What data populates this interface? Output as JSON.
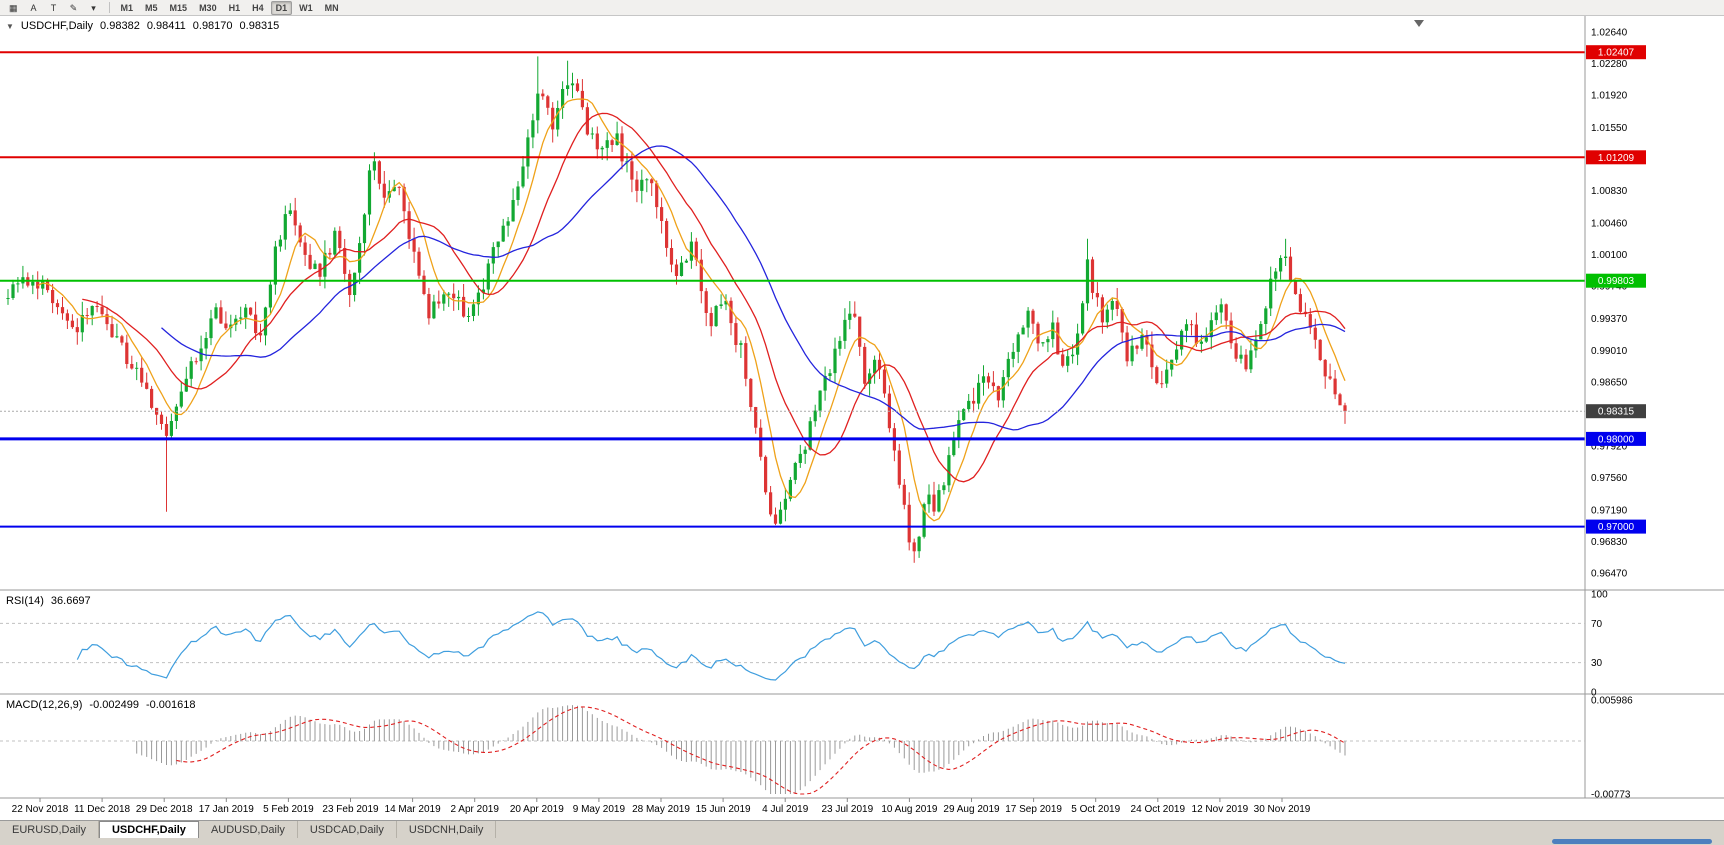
{
  "toolbar": {
    "tool_buttons": [
      {
        "name": "chart-type-icon",
        "glyph": "▦"
      },
      {
        "name": "text-tool-a",
        "glyph": "A"
      },
      {
        "name": "text-label-tool-t",
        "glyph": "T"
      },
      {
        "name": "draw-tool-icon",
        "glyph": "✎"
      },
      {
        "name": "tools-dropdown-icon",
        "glyph": "▾"
      }
    ],
    "timeframes": [
      {
        "label": "M1"
      },
      {
        "label": "M5"
      },
      {
        "label": "M15"
      },
      {
        "label": "M30"
      },
      {
        "label": "H1"
      },
      {
        "label": "H4"
      },
      {
        "label": "D1"
      },
      {
        "label": "W1"
      },
      {
        "label": "MN"
      }
    ],
    "active_timeframe": "D1"
  },
  "header": {
    "collapse_icon": "▼",
    "symbol_title": "USDCHF,Daily",
    "open": "0.98382",
    "high": "0.98411",
    "low": "0.98170",
    "close": "0.98315"
  },
  "price_axis": {
    "labels": [
      "1.02640",
      "1.02280",
      "1.01920",
      "1.01550",
      "1.01190",
      "1.00830",
      "1.00460",
      "1.00100",
      "0.99740",
      "0.99370",
      "0.99010",
      "0.98650",
      "0.97920",
      "0.97560",
      "0.97190",
      "0.96830",
      "0.96470"
    ]
  },
  "hlines": [
    {
      "price": 1.02407,
      "label": "1.02407",
      "color": "#e00000",
      "width": 2
    },
    {
      "price": 1.01209,
      "label": "1.01209",
      "color": "#e00000",
      "width": 2
    },
    {
      "price": 0.99803,
      "label": "0.99803",
      "color": "#00c000",
      "width": 2
    },
    {
      "price": 0.98,
      "label": "0.98000",
      "color": "#0000ee",
      "width": 3
    },
    {
      "price": 0.97,
      "label": "0.97000",
      "color": "#0000ee",
      "width": 2
    }
  ],
  "current_price": {
    "value": 0.98315,
    "label": "0.98315",
    "line_color": "#aaaaaa",
    "tag_bg": "#404040"
  },
  "rsi": {
    "label": "RSI(14)",
    "value_text": "36.6697",
    "period": 14,
    "levels": [
      70,
      30
    ],
    "axis_labels": [
      {
        "text": "100",
        "value": 100
      },
      {
        "text": "70",
        "value": 70
      },
      {
        "text": "30",
        "value": 30
      },
      {
        "text": "0",
        "value": 0
      }
    ],
    "color": "#3f9ede"
  },
  "macd": {
    "label": "MACD(12,26,9)",
    "macd_text": "-0.002499",
    "signal_text": "-0.001618",
    "axis_max": 0.005986,
    "axis_min": -0.00773,
    "axis_labels": [
      {
        "text": "0.005986",
        "value": 0.005986
      },
      {
        "text": "-0.00773",
        "value": -0.00773
      }
    ],
    "histogram_color": "#9a9a9a",
    "signal_color": "#e02020"
  },
  "x_axis": {
    "labels": [
      "22 Nov 2018",
      "11 Dec 2018",
      "29 Dec 2018",
      "17 Jan 2019",
      "5 Feb 2019",
      "23 Feb 2019",
      "14 Mar 2019",
      "2 Apr 2019",
      "20 Apr 2019",
      "9 May 2019",
      "28 May 2019",
      "15 Jun 2019",
      "4 Jul 2019",
      "23 Jul 2019",
      "10 Aug 2019",
      "29 Aug 2019",
      "17 Sep 2019",
      "5 Oct 2019",
      "24 Oct 2019",
      "12 Nov 2019",
      "30 Nov 2019"
    ]
  },
  "tabs": {
    "items": [
      {
        "label": "EURUSD,Daily",
        "active": false
      },
      {
        "label": "USDCHF,Daily",
        "active": true
      },
      {
        "label": "AUDUSD,Daily",
        "active": false
      },
      {
        "label": "USDCAD,Daily",
        "active": false
      },
      {
        "label": "USDCNH,Daily",
        "active": false
      }
    ]
  },
  "chart_data": {
    "type": "candlestick",
    "symbol": "USDCHF",
    "timeframe": "Daily",
    "title": "USDCHF,Daily",
    "candle_count": 271,
    "up_color": "#12a832",
    "down_color": "#dd3434",
    "price_range_visible": [
      0.963,
      1.0282
    ],
    "last_candle": {
      "open": 0.98382,
      "high": 0.98411,
      "low": 0.9817,
      "close": 0.98315
    },
    "price_path": [
      [
        0.0,
        0.996
      ],
      [
        0.018,
        0.999
      ],
      [
        0.035,
        0.9955
      ],
      [
        0.05,
        0.993
      ],
      [
        0.065,
        0.995
      ],
      [
        0.085,
        0.9905
      ],
      [
        0.105,
        0.9855
      ],
      [
        0.118,
        0.98
      ],
      [
        0.126,
        0.9845
      ],
      [
        0.14,
        0.9895
      ],
      [
        0.155,
        0.9945
      ],
      [
        0.165,
        0.9925
      ],
      [
        0.178,
        0.9945
      ],
      [
        0.188,
        0.9915
      ],
      [
        0.2,
        1.001
      ],
      [
        0.21,
        1.0075
      ],
      [
        0.22,
        1.0005
      ],
      [
        0.233,
        0.9985
      ],
      [
        0.244,
        1.0035
      ],
      [
        0.256,
        0.9955
      ],
      [
        0.265,
        1.004
      ],
      [
        0.272,
        1.0125
      ],
      [
        0.281,
        1.007
      ],
      [
        0.29,
        1.01
      ],
      [
        0.303,
        1.001
      ],
      [
        0.315,
        0.994
      ],
      [
        0.33,
        0.9965
      ],
      [
        0.345,
        0.9935
      ],
      [
        0.36,
        1.0
      ],
      [
        0.374,
        1.0045
      ],
      [
        0.386,
        1.012
      ],
      [
        0.397,
        1.021
      ],
      [
        0.408,
        1.016
      ],
      [
        0.42,
        1.0215
      ],
      [
        0.433,
        1.0155
      ],
      [
        0.444,
        1.012
      ],
      [
        0.455,
        1.015
      ],
      [
        0.468,
        1.008
      ],
      [
        0.479,
        1.0105
      ],
      [
        0.49,
        1.004
      ],
      [
        0.5,
        0.999
      ],
      [
        0.511,
        1.002
      ],
      [
        0.524,
        0.993
      ],
      [
        0.535,
        0.9955
      ],
      [
        0.548,
        0.99
      ],
      [
        0.558,
        0.982
      ],
      [
        0.568,
        0.972
      ],
      [
        0.576,
        0.97
      ],
      [
        0.586,
        0.9755
      ],
      [
        0.596,
        0.979
      ],
      [
        0.606,
        0.9845
      ],
      [
        0.616,
        0.9885
      ],
      [
        0.626,
        0.993
      ],
      [
        0.633,
        0.9945
      ],
      [
        0.641,
        0.987
      ],
      [
        0.649,
        0.99
      ],
      [
        0.658,
        0.982
      ],
      [
        0.666,
        0.9765
      ],
      [
        0.672,
        0.9695
      ],
      [
        0.678,
        0.9668
      ],
      [
        0.686,
        0.974
      ],
      [
        0.693,
        0.971
      ],
      [
        0.701,
        0.9762
      ],
      [
        0.711,
        0.9812
      ],
      [
        0.721,
        0.9845
      ],
      [
        0.731,
        0.988
      ],
      [
        0.741,
        0.9852
      ],
      [
        0.751,
        0.9906
      ],
      [
        0.762,
        0.9948
      ],
      [
        0.772,
        0.9906
      ],
      [
        0.781,
        0.993
      ],
      [
        0.79,
        0.9872
      ],
      [
        0.8,
        0.992
      ],
      [
        0.807,
        1.0005
      ],
      [
        0.818,
        0.993
      ],
      [
        0.828,
        0.9962
      ],
      [
        0.838,
        0.989
      ],
      [
        0.848,
        0.9922
      ],
      [
        0.86,
        0.9862
      ],
      [
        0.872,
        0.9906
      ],
      [
        0.882,
        0.9936
      ],
      [
        0.893,
        0.99
      ],
      [
        0.907,
        0.995
      ],
      [
        0.917,
        0.9906
      ],
      [
        0.927,
        0.988
      ],
      [
        0.937,
        0.9936
      ],
      [
        0.947,
        0.9985
      ],
      [
        0.955,
        1.0012
      ],
      [
        0.963,
        0.9972
      ],
      [
        0.972,
        0.993
      ],
      [
        0.981,
        0.9894
      ],
      [
        0.99,
        0.9862
      ],
      [
        1.0,
        0.9835
      ]
    ],
    "spikes": [
      {
        "t": 0.12,
        "low": 0.9717
      },
      {
        "t": 0.676,
        "low": 0.9659
      },
      {
        "t": 0.397,
        "high": 1.0236
      },
      {
        "t": 0.42,
        "high": 1.0231
      },
      {
        "t": 0.807,
        "high": 1.0028
      },
      {
        "t": 0.955,
        "high": 1.0028
      },
      {
        "t": 0.633,
        "high": 0.9952
      }
    ],
    "moving_averages": [
      {
        "name": "fast-ma",
        "period": 7,
        "color": "#efa21a"
      },
      {
        "name": "mid-ma",
        "period": 16,
        "color": "#e02020"
      },
      {
        "name": "slow-ma",
        "period": 32,
        "color": "#2424dd"
      }
    ]
  }
}
